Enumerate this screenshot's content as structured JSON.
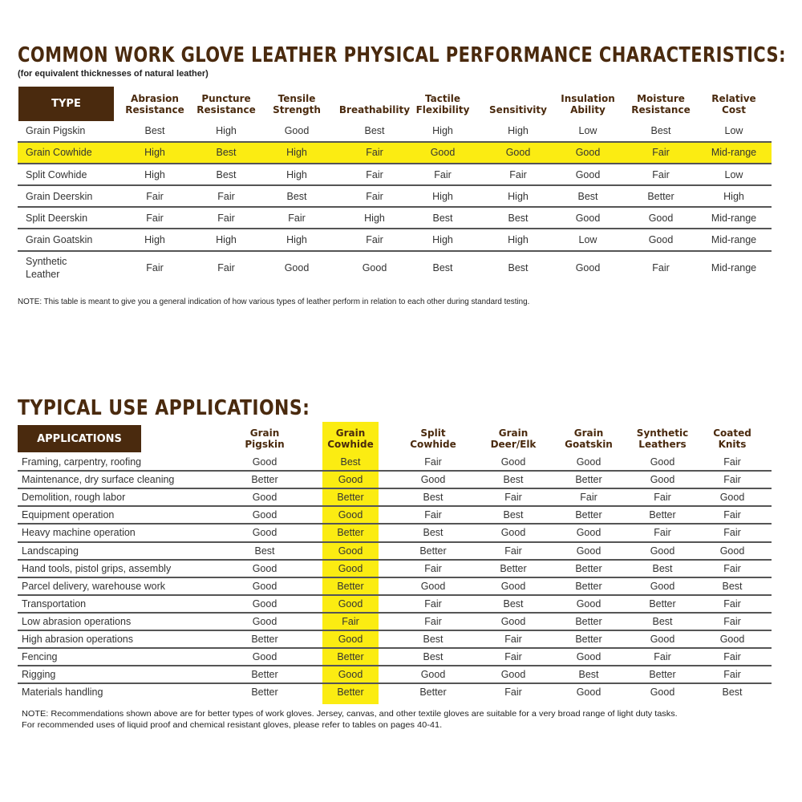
{
  "section1": {
    "title": "COMMON WORK GLOVE LEATHER PHYSICAL PERFORMANCE CHARACTERISTICS:",
    "subtitle": "(for equivalent thicknesses of natural leather)",
    "type_header": "TYPE",
    "columns": [
      "Abrasion\nResistance",
      "Puncture\nResistance",
      "Tensile\nStrength",
      "Breathability",
      "Tactile\nFlexibility",
      "Sensitivity",
      "Insulation\nAbility",
      "Moisture\nResistance",
      "Relative\nCost"
    ],
    "highlighted_row": 1,
    "rows": [
      {
        "type": "Grain Pigskin",
        "values": [
          "Best",
          "High",
          "Good",
          "Best",
          "High",
          "High",
          "Low",
          "Best",
          "Low"
        ]
      },
      {
        "type": "Grain Cowhide",
        "values": [
          "High",
          "Best",
          "High",
          "Fair",
          "Good",
          "Good",
          "Good",
          "Fair",
          "Mid-range"
        ]
      },
      {
        "type": "Split Cowhide",
        "values": [
          "High",
          "Best",
          "High",
          "Fair",
          "Fair",
          "Fair",
          "Good",
          "Fair",
          "Low"
        ]
      },
      {
        "type": "Grain Deerskin",
        "values": [
          "Fair",
          "Fair",
          "Best",
          "Fair",
          "High",
          "High",
          "Best",
          "Better",
          "High"
        ]
      },
      {
        "type": "Split Deerskin",
        "values": [
          "Fair",
          "Fair",
          "Fair",
          "High",
          "Best",
          "Best",
          "Good",
          "Good",
          "Mid-range"
        ]
      },
      {
        "type": "Grain Goatskin",
        "values": [
          "High",
          "High",
          "High",
          "Fair",
          "High",
          "High",
          "Low",
          "Good",
          "Mid-range"
        ]
      },
      {
        "type": "Synthetic\nLeather",
        "values": [
          "Fair",
          "Fair",
          "Good",
          "Good",
          "Best",
          "Best",
          "Good",
          "Fair",
          "Mid-range"
        ]
      }
    ],
    "note": "NOTE: This table is meant to give you a general indication of how various types of leather perform in relation to each other during standard testing."
  },
  "section2": {
    "title": "TYPICAL USE APPLICATIONS:",
    "applications_header": "APPLICATIONS",
    "columns": [
      "Grain\nPigskin",
      "Grain\nCowhide",
      "Split\nCowhide",
      "Grain\nDeer/Elk",
      "Grain\nGoatskin",
      "Synthetic\nLeathers",
      "Coated\nKnits"
    ],
    "highlighted_column": 1,
    "rows": [
      {
        "application": "Framing, carpentry, roofing",
        "values": [
          "Good",
          "Best",
          "Fair",
          "Good",
          "Good",
          "Good",
          "Fair"
        ]
      },
      {
        "application": "Maintenance, dry surface cleaning",
        "values": [
          "Better",
          "Good",
          "Good",
          "Best",
          "Better",
          "Good",
          "Fair"
        ]
      },
      {
        "application": "Demolition, rough labor",
        "values": [
          "Good",
          "Better",
          "Best",
          "Fair",
          "Fair",
          "Fair",
          "Good"
        ]
      },
      {
        "application": "Equipment operation",
        "values": [
          "Good",
          "Good",
          "Fair",
          "Best",
          "Better",
          "Better",
          "Fair"
        ]
      },
      {
        "application": "Heavy machine operation",
        "values": [
          "Good",
          "Better",
          "Best",
          "Good",
          "Good",
          "Fair",
          "Fair"
        ]
      },
      {
        "application": "Landscaping",
        "values": [
          "Best",
          "Good",
          "Better",
          "Fair",
          "Good",
          "Good",
          "Good"
        ]
      },
      {
        "application": "Hand tools, pistol grips, assembly",
        "values": [
          "Good",
          "Good",
          "Fair",
          "Better",
          "Better",
          "Best",
          "Fair"
        ]
      },
      {
        "application": "Parcel delivery, warehouse work",
        "values": [
          "Good",
          "Better",
          "Good",
          "Good",
          "Better",
          "Good",
          "Best"
        ]
      },
      {
        "application": "Transportation",
        "values": [
          "Good",
          "Good",
          "Fair",
          "Best",
          "Good",
          "Better",
          "Fair"
        ]
      },
      {
        "application": "Low abrasion operations",
        "values": [
          "Good",
          "Fair",
          "Fair",
          "Good",
          "Better",
          "Best",
          "Fair"
        ]
      },
      {
        "application": "High abrasion operations",
        "values": [
          "Better",
          "Good",
          "Best",
          "Fair",
          "Better",
          "Good",
          "Good"
        ]
      },
      {
        "application": "Fencing",
        "values": [
          "Good",
          "Better",
          "Best",
          "Fair",
          "Good",
          "Fair",
          "Fair"
        ]
      },
      {
        "application": "Rigging",
        "values": [
          "Better",
          "Good",
          "Good",
          "Good",
          "Best",
          "Better",
          "Fair"
        ]
      },
      {
        "application": "Materials handling",
        "values": [
          "Better",
          "Better",
          "Better",
          "Fair",
          "Good",
          "Good",
          "Best"
        ]
      }
    ],
    "note_line1": "NOTE: Recommendations shown above are for better types of work gloves. Jersey, canvas, and other textile gloves are suitable for a very broad range of light duty tasks.",
    "note_line2": "For recommended uses of liquid proof and chemical resistant gloves, please refer to tables on pages 40-41."
  },
  "colors": {
    "brand_brown": "#4a2a0e",
    "highlight_yellow": "#fbec12"
  }
}
